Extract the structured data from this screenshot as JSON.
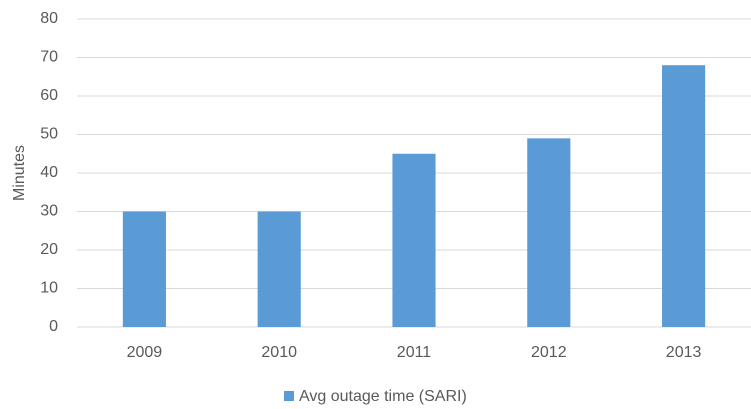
{
  "chart_data": {
    "type": "bar",
    "y_label": "Minutes",
    "categories": [
      "2009",
      "2010",
      "2011",
      "2012",
      "2013"
    ],
    "series": [
      {
        "name": "Avg outage time (SARI)",
        "color": "#5b9bd5",
        "values": [
          30,
          30,
          45,
          49,
          68
        ]
      }
    ],
    "ylim": [
      0,
      80
    ],
    "yticks": [
      0,
      10,
      20,
      30,
      40,
      50,
      60,
      70,
      80
    ],
    "grid": true,
    "legend": "bottom"
  }
}
